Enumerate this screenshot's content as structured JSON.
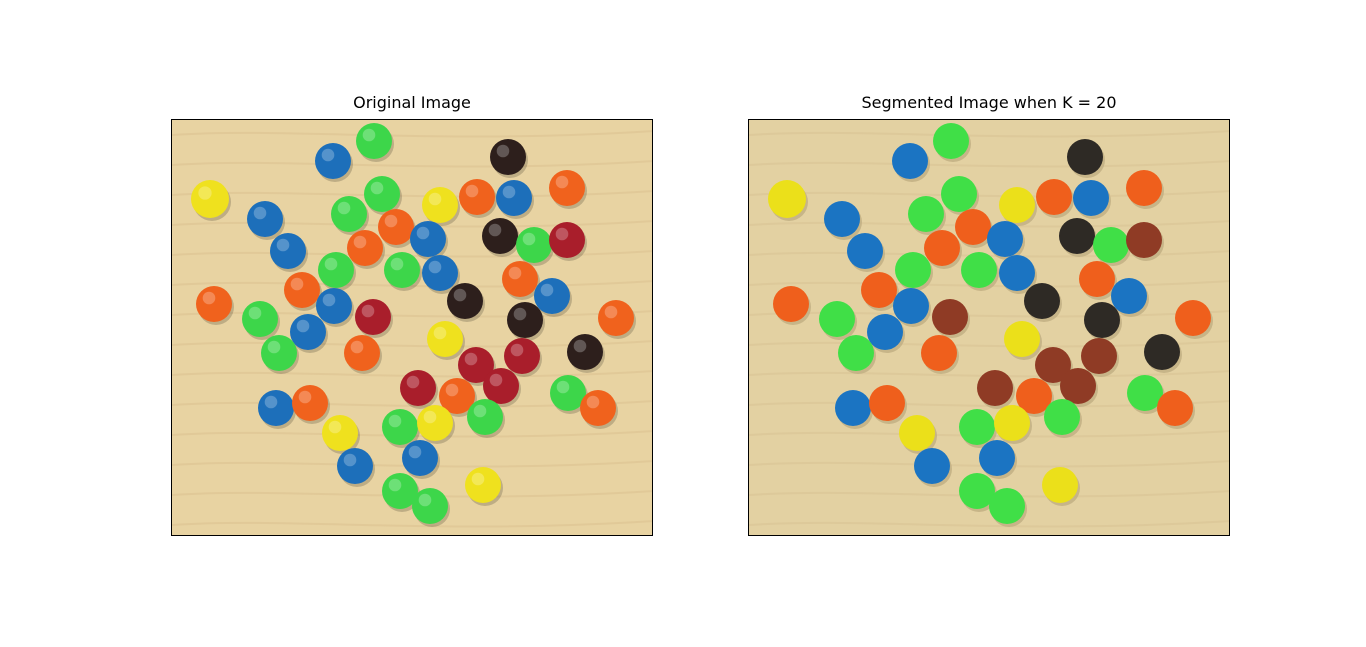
{
  "figure": {
    "panels": [
      {
        "title": "Original Image",
        "kind": "original"
      },
      {
        "title": "Segmented Image when K = 20",
        "kind": "segmented"
      }
    ]
  },
  "colors": {
    "background_original": "#e8d3a2",
    "background_segmented": "#e3d1a2",
    "candy_blue": "#1d6fba",
    "candy_green": "#3dd64a",
    "candy_yellow": "#efe11e",
    "candy_orange": "#f0621d",
    "candy_red": "#a91e2b",
    "candy_brown": "#2d1f1c",
    "seg_blue": "#1b74c2",
    "seg_green": "#40df47",
    "seg_yellow": "#ebe01a",
    "seg_orange": "#ef5f1c",
    "seg_red": "#8f3b25",
    "seg_brown": "#2e2a25"
  }
}
